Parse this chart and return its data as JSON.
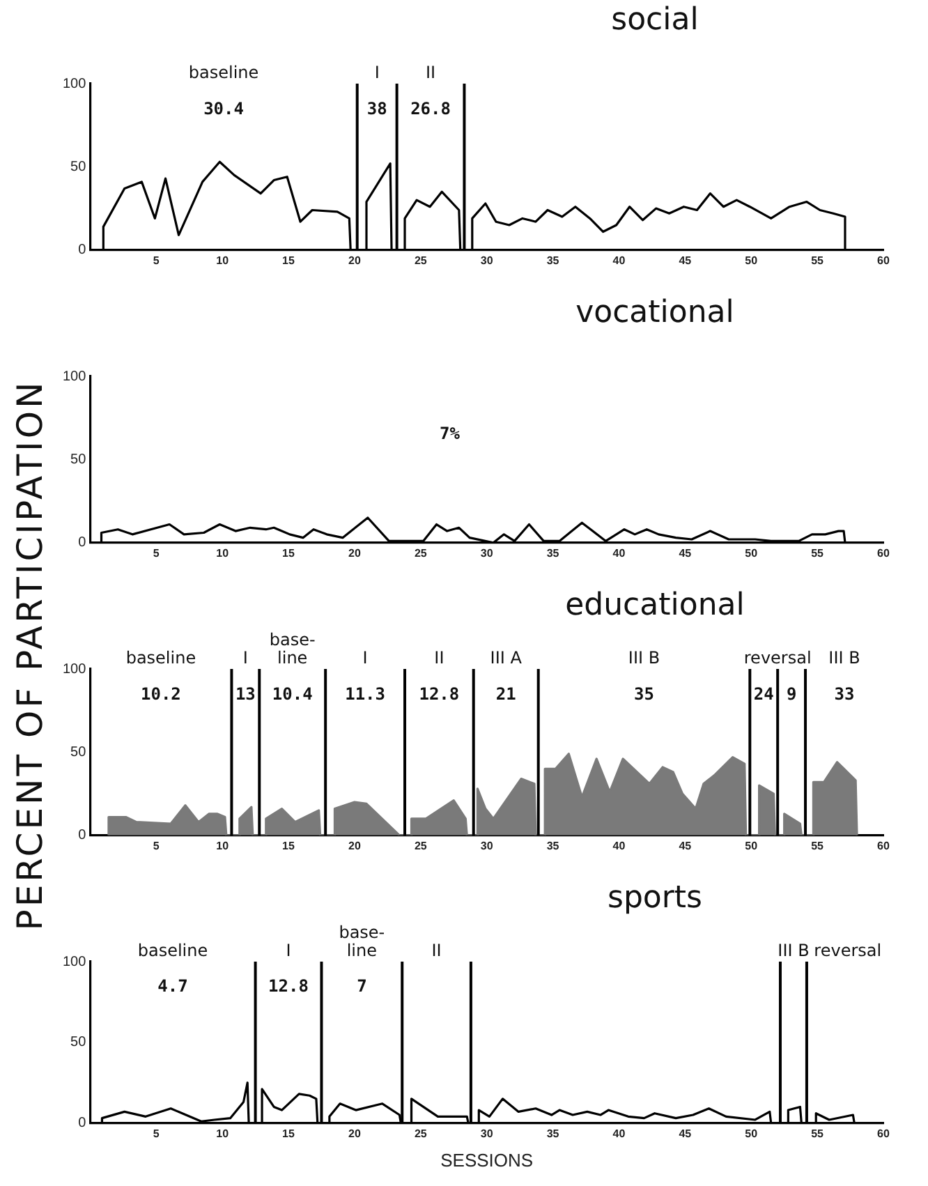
{
  "chart_data": [
    {
      "type": "line",
      "title": "social",
      "ylabel": "PERCENT OF PARTICIPATION",
      "marker": "none",
      "xlim": [
        0,
        60
      ],
      "ylim": [
        0,
        100
      ],
      "xticks": [
        5,
        10,
        15,
        20,
        25,
        30,
        35,
        40,
        45,
        50,
        55,
        60
      ],
      "yticks": [
        0,
        50,
        100
      ],
      "series": [
        {
          "color": "#000000",
          "x": [
            1,
            1,
            2.6,
            3.9,
            4.9,
            5.7,
            6.7,
            8.5,
            9.8,
            10.9,
            12.9,
            13.9,
            14.9,
            15.9,
            16.8,
            18.7,
            19.6,
            19.7,
            20.9,
            20.9,
            22.7,
            22.8,
            23.8,
            23.8,
            24.7,
            25.7,
            26.6,
            27.9,
            28.0,
            28.9,
            28.9,
            29.9,
            30.7,
            31.7,
            32.7,
            33.7,
            34.6,
            35.7,
            36.7,
            37.8,
            38.8,
            39.8,
            40.8,
            41.8,
            42.8,
            43.8,
            44.9,
            45.9,
            46.9,
            47.9,
            48.9,
            49.9,
            51.5,
            52.9,
            54.2,
            55.2,
            56.2,
            57.1,
            57.1
          ],
          "values": [
            0,
            14,
            37,
            41,
            19,
            43,
            9,
            41,
            53,
            45,
            34,
            42,
            44,
            17,
            24,
            23,
            19,
            0,
            0,
            29,
            52,
            0,
            0,
            19,
            30,
            26,
            35,
            24,
            0,
            0,
            19,
            28,
            17,
            15,
            19,
            17,
            24,
            20,
            26,
            19,
            11,
            15,
            26,
            18,
            25,
            22,
            26,
            24,
            34,
            26,
            30,
            26,
            19,
            26,
            29,
            24,
            22,
            20,
            0
          ]
        }
      ],
      "ref_lines": [
        {
          "axis": "x",
          "value": 20.2
        },
        {
          "axis": "x",
          "value": 23.2
        },
        {
          "axis": "x",
          "value": 28.3
        }
      ],
      "annotations": [
        "baseline",
        "I",
        "II",
        "30.4",
        "38",
        "26.8"
      ]
    },
    {
      "type": "line",
      "title": "vocational",
      "marker": "none",
      "xlim": [
        0,
        60
      ],
      "ylim": [
        0,
        100
      ],
      "xticks": [
        5,
        10,
        15,
        20,
        25,
        30,
        35,
        40,
        45,
        50,
        55,
        60
      ],
      "yticks": [
        0,
        50,
        100
      ],
      "series": [
        {
          "color": "#000000",
          "x": [
            0.85,
            0.85,
            2.1,
            3.2,
            6,
            7.1,
            8.6,
            9.8,
            11,
            12.1,
            13.3,
            13.9,
            15.1,
            16.1,
            16.9,
            17.9,
            19.1,
            21,
            22.6,
            25.2,
            26.2,
            27,
            27.9,
            28.7,
            30.5,
            31.3,
            32.1,
            33.2,
            34.3,
            35.5,
            37.2,
            39,
            40.4,
            41.2,
            42.1,
            43,
            44.3,
            45.5,
            46.9,
            48.3,
            50.3,
            51.5,
            53.6,
            54.6,
            55.6,
            56.6,
            57,
            57.1
          ],
          "values": [
            0,
            6,
            8,
            5,
            11,
            5,
            6,
            11,
            7,
            9,
            8,
            9,
            5,
            3,
            8,
            5,
            3,
            15,
            1,
            1,
            11,
            7,
            9,
            3,
            0,
            5,
            1,
            11,
            1,
            1,
            12,
            1,
            8,
            5,
            8,
            5,
            3,
            2,
            7,
            2,
            2,
            1,
            1,
            5,
            5,
            7,
            7,
            0
          ]
        }
      ],
      "annotations": [
        "7%"
      ]
    },
    {
      "type": "area",
      "title": "educational",
      "marker": "none",
      "xlim": [
        0,
        60
      ],
      "ylim": [
        0,
        100
      ],
      "xticks": [
        5,
        10,
        15,
        20,
        25,
        30,
        35,
        40,
        45,
        50,
        55,
        60
      ],
      "yticks": [
        0,
        50,
        100
      ],
      "series": [
        {
          "color": "#7a7a7a",
          "x": [
            1.4,
            1.4,
            2.7,
            3.5,
            6.1,
            7.2,
            8.2,
            9,
            9.6,
            10.2,
            10.3,
            11.3,
            11.3,
            12.2,
            12.3,
            13.3,
            13.3,
            14.5,
            15.5,
            17.3,
            17.4,
            18.5,
            18.5,
            20,
            20.9,
            23.4,
            24.3,
            24.3,
            25.4,
            27.5,
            28.4,
            28.5,
            29.3,
            29.3,
            29.9,
            30.5,
            32.6,
            33.6,
            33.7,
            34.4,
            34.4,
            35.2,
            36.2,
            37.2,
            38.3,
            39.3,
            40.3,
            42.3,
            43.3,
            44.1,
            44.8,
            45.8,
            46.4,
            47.2,
            48.6,
            49.5,
            49.6,
            50.6,
            50.6,
            51.7,
            51.8,
            52.5,
            52.5,
            53.7,
            53.8,
            54.7,
            54.7,
            55.5,
            56.5,
            57.9,
            58
          ],
          "values": [
            0,
            11,
            11,
            8,
            7,
            18,
            8,
            13,
            13,
            11,
            0,
            0,
            10,
            17,
            0,
            0,
            10,
            16,
            8,
            15,
            0,
            0,
            16,
            20,
            19,
            0,
            0,
            10,
            10,
            21,
            10,
            0,
            0,
            28,
            16,
            10,
            34,
            31,
            0,
            0,
            40,
            40,
            49,
            23,
            46,
            26,
            46,
            31,
            41,
            38,
            25,
            16,
            31,
            36,
            47,
            43,
            0,
            0,
            30,
            25,
            0,
            0,
            13,
            7,
            0,
            0,
            32,
            32,
            44,
            33,
            0
          ]
        }
      ],
      "ref_lines": [
        {
          "axis": "x",
          "value": 10.7
        },
        {
          "axis": "x",
          "value": 12.8
        },
        {
          "axis": "x",
          "value": 17.8
        },
        {
          "axis": "x",
          "value": 23.8
        },
        {
          "axis": "x",
          "value": 29
        },
        {
          "axis": "x",
          "value": 33.9
        },
        {
          "axis": "x",
          "value": 49.9
        },
        {
          "axis": "x",
          "value": 52
        },
        {
          "axis": "x",
          "value": 54.1
        }
      ],
      "annotations": [
        "baseline",
        "I",
        "base-\nline",
        "I",
        "II",
        "III A",
        "III B",
        "reversal",
        "III B",
        "10.2",
        "13",
        "10.4",
        "11.3",
        "12.8",
        "21",
        "35",
        "24",
        "9",
        "33"
      ]
    },
    {
      "type": "line",
      "title": "sports",
      "xlabel": "SESSIONS",
      "marker": "none",
      "xlim": [
        0,
        60
      ],
      "ylim": [
        0,
        100
      ],
      "xticks": [
        5,
        10,
        15,
        20,
        25,
        30,
        35,
        40,
        45,
        50,
        55,
        60
      ],
      "yticks": [
        0,
        50,
        100
      ],
      "series": [
        {
          "color": "#000000",
          "x": [
            0.9,
            0.9,
            2.6,
            4.2,
            6.1,
            8.4,
            9.4,
            10.6,
            11.6,
            11.9,
            12,
            13,
            13,
            13.9,
            14.5,
            15.8,
            16.6,
            17.1,
            17.2,
            18.1,
            18.1,
            18.9,
            20.1,
            22.1,
            23.4,
            23.5,
            24.3,
            24.3,
            26.3,
            28.5,
            28.6,
            29.4,
            29.4,
            30.2,
            31.2,
            32.4,
            33.7,
            34.9,
            35.5,
            36.5,
            37.6,
            38.6,
            39.2,
            40.7,
            41.9,
            42.7,
            44.3,
            45.6,
            46.8,
            48.1,
            50.3,
            51.4,
            51.5,
            52.8,
            52.8,
            53.7,
            53.8,
            54.9,
            54.9,
            55.9,
            57.7,
            57.8
          ],
          "values": [
            0,
            3,
            7,
            4,
            9,
            1,
            2,
            3,
            13,
            25,
            0,
            0,
            21,
            10,
            8,
            18,
            17,
            15,
            0,
            0,
            4,
            12,
            8,
            12,
            5,
            0,
            0,
            15,
            4,
            4,
            0,
            0,
            8,
            4,
            15,
            7,
            9,
            5,
            8,
            5,
            7,
            5,
            8,
            4,
            3,
            6,
            3,
            5,
            9,
            4,
            2,
            7,
            0,
            0,
            8,
            10,
            0,
            0,
            6,
            2,
            5,
            0
          ]
        }
      ],
      "ref_lines": [
        {
          "axis": "x",
          "value": 12.5
        },
        {
          "axis": "x",
          "value": 17.5
        },
        {
          "axis": "x",
          "value": 23.6
        },
        {
          "axis": "x",
          "value": 28.8
        },
        {
          "axis": "x",
          "value": 52.2
        },
        {
          "axis": "x",
          "value": 54.2
        }
      ],
      "annotations": [
        "baseline",
        "I",
        "base-\nline",
        "II",
        "III B",
        "reversal",
        "4.7",
        "12.8",
        "7"
      ]
    }
  ]
}
